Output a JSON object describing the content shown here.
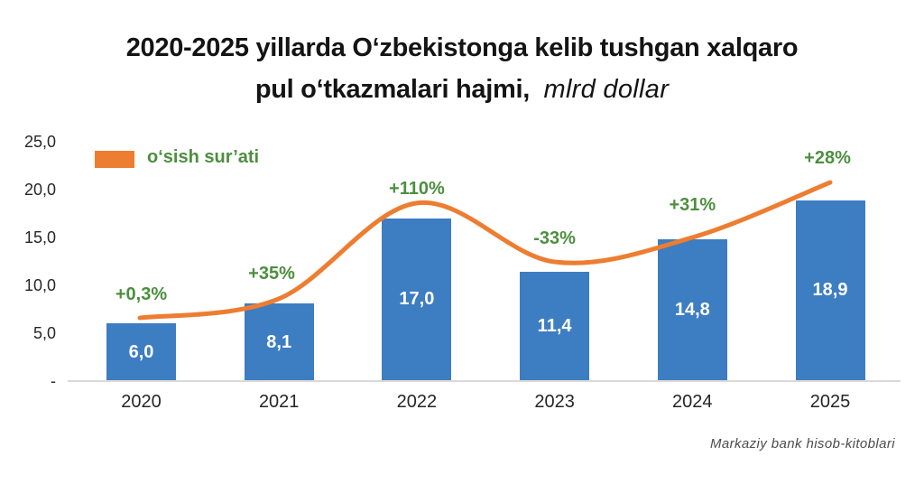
{
  "page": {
    "background": "#FFFFFF"
  },
  "title": {
    "line1": "2020-2025 yillarda O‘zbekistonga kelib tushgan xalqaro",
    "line2_bold": "pul o‘tkazmalari hajmi,",
    "line2_italic": "mlrd dollar"
  },
  "legend": {
    "label": "o‘sish sur’ati"
  },
  "source": "Markaziy bank hisob-kitoblari",
  "colors": {
    "bar": "#3D7DC2",
    "line": "#ED7D31",
    "growth_text": "#4C8F3E",
    "bar_value_text": "#FFFFFF",
    "title_text": "#141414",
    "axis_text": "#262626",
    "axis_line": "#D9D9D9",
    "source_text": "#4D4D4D"
  },
  "chart_data": {
    "type": "bar",
    "title": "2020-2025 yillarda O‘zbekistonga kelib tushgan xalqaro pul o‘tkazmalari hajmi, mlrd dollar",
    "categories": [
      "2020",
      "2021",
      "2022",
      "2023",
      "2024",
      "2025"
    ],
    "series": [
      {
        "name": "pul o‘tkazmalari hajmi (mlrd dollar)",
        "type": "bar",
        "values": [
          6.0,
          8.1,
          17.0,
          11.4,
          14.8,
          18.9
        ],
        "value_labels": [
          "6,0",
          "8,1",
          "17,0",
          "11,4",
          "14,8",
          "18,9"
        ]
      },
      {
        "name": "o‘sish sur’ati",
        "type": "line",
        "values_percent": [
          0.3,
          35,
          110,
          -33,
          31,
          28
        ],
        "value_labels": [
          "+0,3%",
          "+35%",
          "+110%",
          "-33%",
          "+31%",
          "+28%"
        ]
      }
    ],
    "y_tick_labels": [
      "25,0",
      "20,0",
      "15,0",
      "10,0",
      "5,0",
      "-"
    ],
    "y_tick_values": [
      25,
      20,
      15,
      10,
      5,
      0
    ],
    "ylim": [
      0,
      25
    ],
    "grid": false,
    "legend_position": "top-left",
    "source": "Markaziy bank hisob-kitoblari"
  }
}
